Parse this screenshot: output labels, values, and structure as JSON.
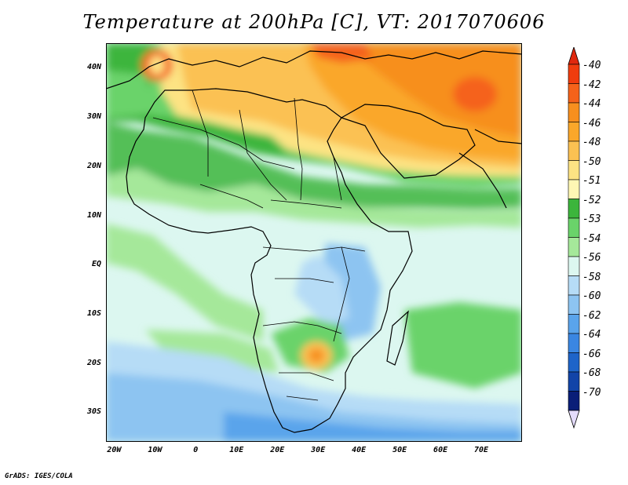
{
  "title": "Temperature at 200hPa [C], VT: 2017070606",
  "credit": "GrADS: IGES/COLA",
  "map": {
    "lat_range": [
      -36,
      45
    ],
    "lon_range": [
      -22,
      80
    ],
    "lat_ticks": [
      {
        "value": 40,
        "label": "40N"
      },
      {
        "value": 30,
        "label": "30N"
      },
      {
        "value": 20,
        "label": "20N"
      },
      {
        "value": 10,
        "label": "10N"
      },
      {
        "value": 0,
        "label": "EQ"
      },
      {
        "value": -10,
        "label": "10S"
      },
      {
        "value": -20,
        "label": "20S"
      },
      {
        "value": -30,
        "label": "30S"
      }
    ],
    "lon_ticks": [
      {
        "value": -20,
        "label": "20W"
      },
      {
        "value": -10,
        "label": "10W"
      },
      {
        "value": 0,
        "label": "0"
      },
      {
        "value": 10,
        "label": "10E"
      },
      {
        "value": 20,
        "label": "20E"
      },
      {
        "value": 30,
        "label": "30E"
      },
      {
        "value": 40,
        "label": "40E"
      },
      {
        "value": 50,
        "label": "50E"
      },
      {
        "value": 60,
        "label": "60E"
      },
      {
        "value": 70,
        "label": "70E"
      }
    ]
  },
  "colorbar": {
    "labels": [
      "-40",
      "-42",
      "-44",
      "-46",
      "-48",
      "-50",
      "-51",
      "-52",
      "-53",
      "-54",
      "-56",
      "-58",
      "-60",
      "-62",
      "-64",
      "-66",
      "-68",
      "-70"
    ],
    "colors": [
      "#f03c0e",
      "#f5621a",
      "#f78f1e",
      "#faa72a",
      "#fbc152",
      "#fde383",
      "#fef7b4",
      "#3cb53c",
      "#6ad36a",
      "#a5e89a",
      "#dcf7f0",
      "#b6dcf6",
      "#8dc4f1",
      "#5aa4eb",
      "#3a86e2",
      "#1e64c9",
      "#1244a8",
      "#0a1e78"
    ],
    "top_arrow_color": "#e0280e",
    "bottom_arrow_color": "#e4dcfc"
  }
}
